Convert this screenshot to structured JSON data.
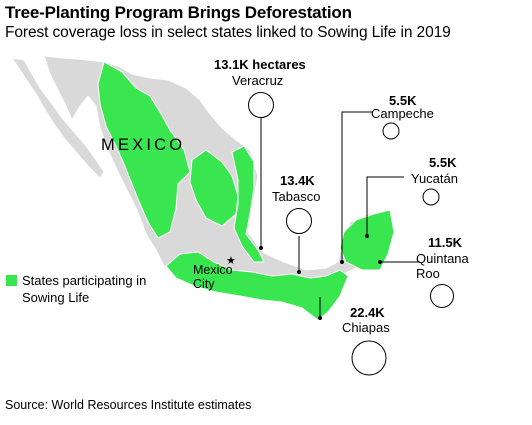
{
  "title": "Tree-Planting Program Brings Deforestation",
  "subtitle": "Forest coverage loss in select states linked to Sowing Life in 2019",
  "legend": {
    "label": "States participating in Sowing Life",
    "color": "#39e64f"
  },
  "map": {
    "country_label": "MEXICO",
    "city_label": "Mexico City",
    "base_color": "#d9d9d9",
    "participating_color": "#39e64f",
    "marker": "star-icon"
  },
  "states": [
    {
      "name": "Veracruz",
      "value": "13.1K hectares"
    },
    {
      "name": "Campeche",
      "value": "5.5K"
    },
    {
      "name": "Tabasco",
      "value": "13.4K"
    },
    {
      "name": "Yucatán",
      "value": "5.5K"
    },
    {
      "name": "Quintana Roo",
      "value": "11.5K"
    },
    {
      "name": "Chiapas",
      "value": "22.4K"
    }
  ],
  "source": "Source: World Resources Institute estimates"
}
